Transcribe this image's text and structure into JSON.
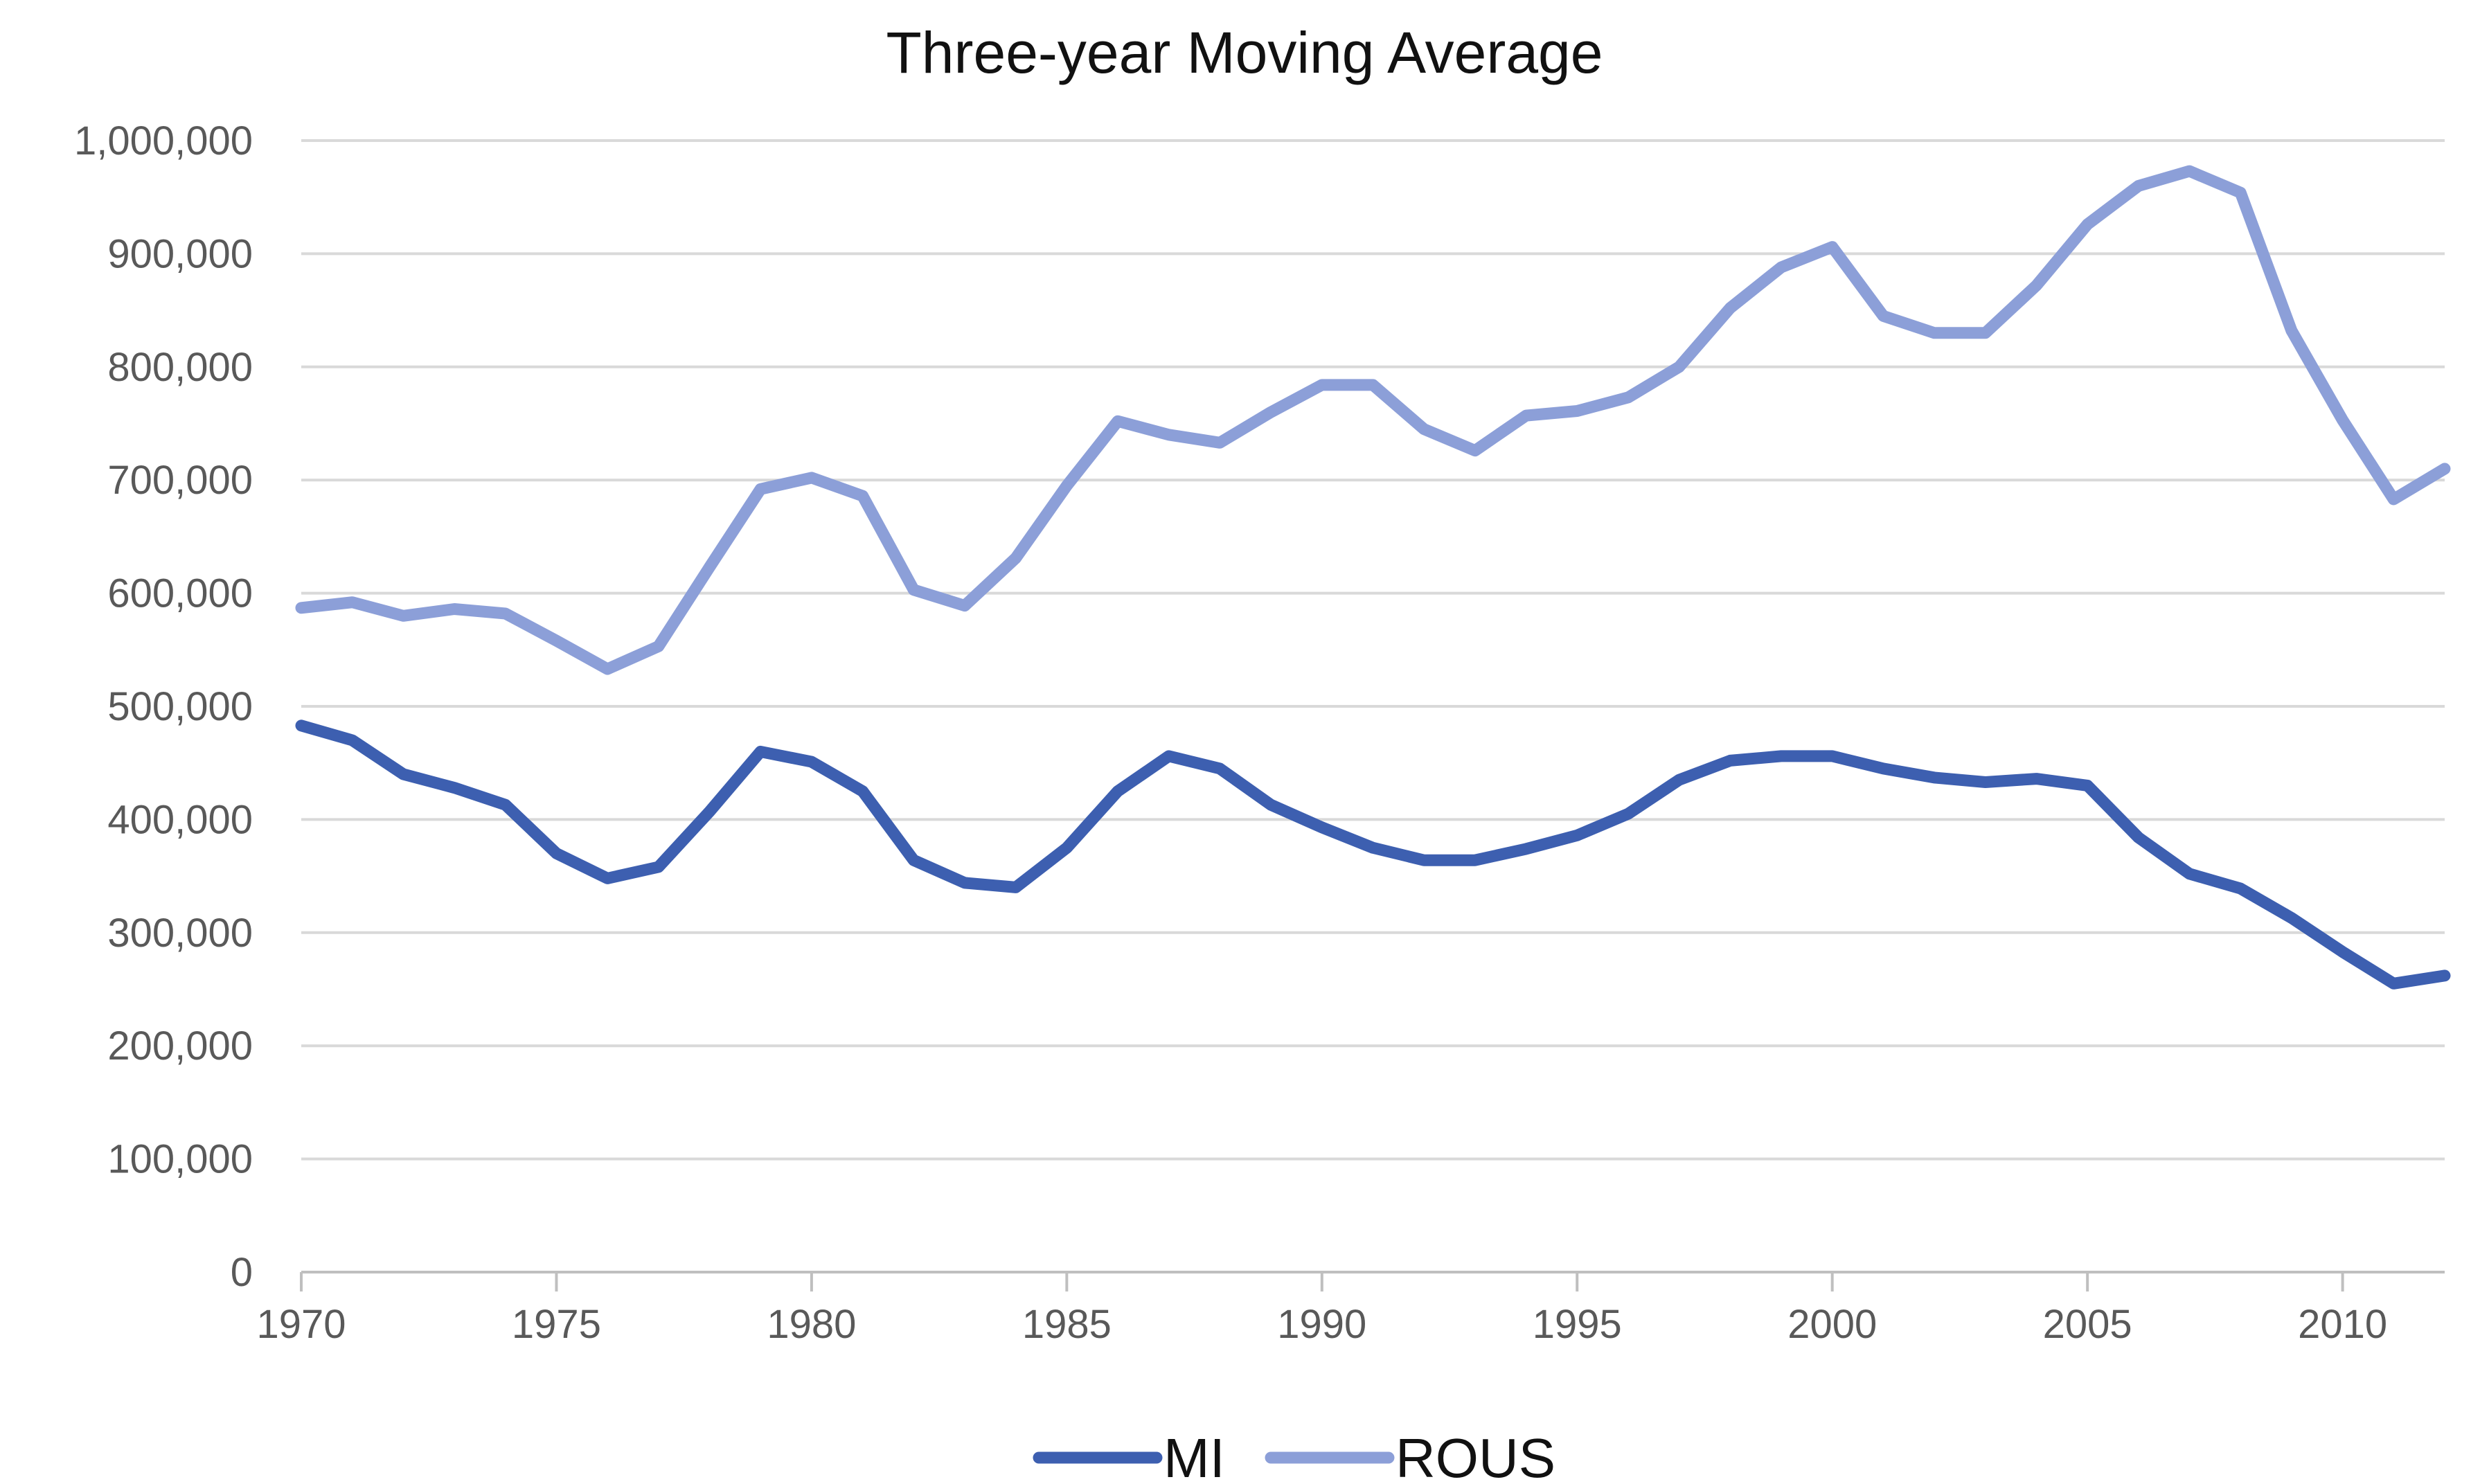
{
  "chart_data": {
    "type": "line",
    "title": "Three-year Moving Average",
    "xlabel": "",
    "ylabel": "",
    "xlim": [
      1970,
      2012
    ],
    "ylim": [
      0,
      1000000
    ],
    "y_ticks": [
      0,
      100000,
      200000,
      300000,
      400000,
      500000,
      600000,
      700000,
      800000,
      900000,
      1000000
    ],
    "y_tick_labels": [
      "0",
      "100,000",
      "200,000",
      "300,000",
      "400,000",
      "500,000",
      "600,000",
      "700,000",
      "800,000",
      "900,000",
      "1,000,000"
    ],
    "x_ticks": [
      1970,
      1975,
      1980,
      1985,
      1990,
      1995,
      2000,
      2005,
      2010
    ],
    "x_tick_labels": [
      "1970",
      "1975",
      "1980",
      "1985",
      "1990",
      "1995",
      "2000",
      "2005",
      "2010"
    ],
    "grid": true,
    "legend_position": "bottom",
    "x": [
      1970,
      1971,
      1972,
      1973,
      1974,
      1975,
      1976,
      1977,
      1978,
      1979,
      1980,
      1981,
      1982,
      1983,
      1984,
      1985,
      1986,
      1987,
      1988,
      1989,
      1990,
      1991,
      1992,
      1993,
      1994,
      1995,
      1996,
      1997,
      1998,
      1999,
      2000,
      2001,
      2002,
      2003,
      2004,
      2005,
      2006,
      2007,
      2008,
      2009,
      2010,
      2011,
      2012
    ],
    "series": [
      {
        "name": "MI",
        "color": "#3d5fb0",
        "values": [
          483000,
          470000,
          440000,
          428000,
          413000,
          370000,
          348000,
          358000,
          407000,
          460000,
          451000,
          425000,
          364000,
          344000,
          340000,
          375000,
          425000,
          456000,
          445000,
          413000,
          393000,
          375000,
          364000,
          364000,
          374000,
          386000,
          405000,
          435000,
          452000,
          456000,
          456000,
          445000,
          437000,
          433000,
          436000,
          430000,
          384000,
          352000,
          339000,
          313000,
          283000,
          255000,
          262000
        ]
      },
      {
        "name": "ROUS",
        "color": "#8c9fd8",
        "values": [
          587000,
          592000,
          580000,
          586000,
          582000,
          558000,
          533000,
          553000,
          623000,
          692000,
          702000,
          686000,
          603000,
          589000,
          631000,
          695000,
          752000,
          740000,
          733000,
          760000,
          784000,
          784000,
          745000,
          726000,
          757000,
          761000,
          773000,
          800000,
          852000,
          888000,
          906000,
          845000,
          830000,
          830000,
          872000,
          926000,
          960000,
          973000,
          954000,
          832000,
          753000,
          683000,
          710000
        ]
      }
    ]
  }
}
